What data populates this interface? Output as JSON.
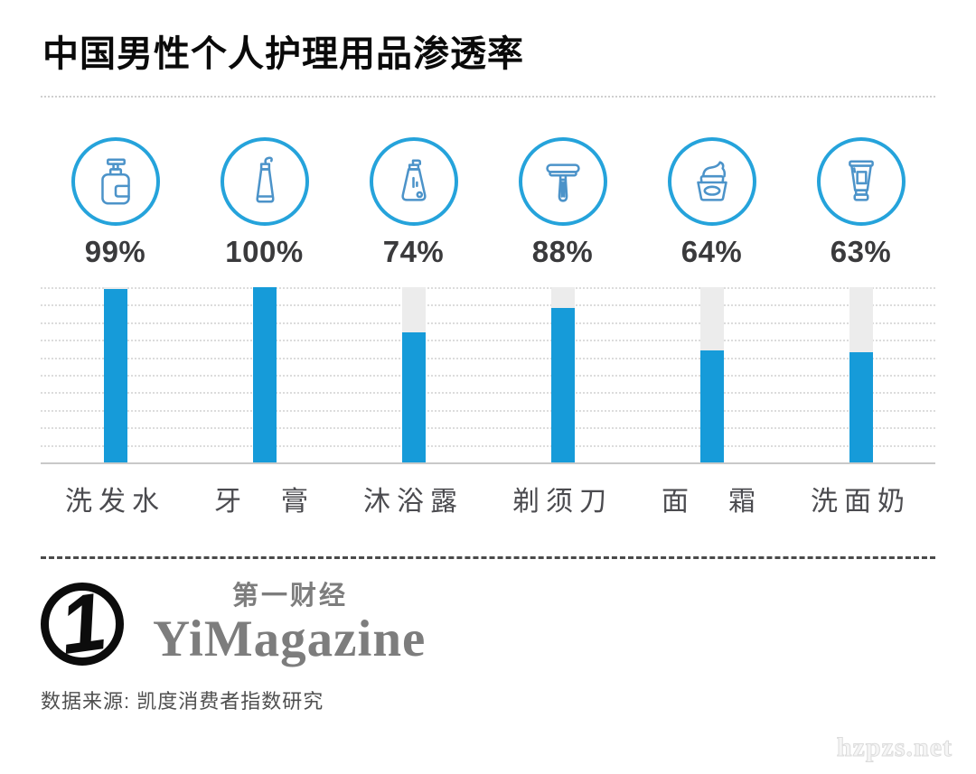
{
  "title": "中国男性个人护理用品渗透率",
  "chart_data": {
    "type": "bar",
    "title": "中国男性个人护理用品渗透率",
    "categories": [
      "洗发水",
      "牙　膏",
      "沐浴露",
      "剃须刀",
      "面　霜",
      "洗面奶"
    ],
    "values": [
      99,
      100,
      74,
      88,
      64,
      63
    ],
    "value_labels": [
      "99%",
      "100%",
      "74%",
      "88%",
      "64%",
      "63%"
    ],
    "icons": [
      "shampoo-pump-bottle-icon",
      "toothpaste-tube-icon",
      "body-wash-bottle-icon",
      "razor-icon",
      "face-cream-jar-icon",
      "cleanser-tube-icon"
    ],
    "xlabel": "",
    "ylabel": "",
    "ylim": [
      0,
      100
    ],
    "grid": "horizontal dotted lines every 10%, solid baseline at 0",
    "legend": "none",
    "bar_color": "#169BD9",
    "track_color": "#ECECEC"
  },
  "footer": {
    "brand_cn": "第一财经",
    "brand_en": "YiMagazine",
    "logo_glyph": "1",
    "source": "数据来源: 凯度消费者指数研究"
  },
  "watermark": "hzpzs.net",
  "colors": {
    "bar_blue": "#169BD9",
    "icon_ring_blue": "#25A3DB",
    "icon_stroke_blue": "#4C93C9",
    "track_gray": "#ECECEC",
    "value_text": "#3A3A3C",
    "category_text": "#4B4B4F",
    "brand_gray": "#7D7D7D"
  }
}
